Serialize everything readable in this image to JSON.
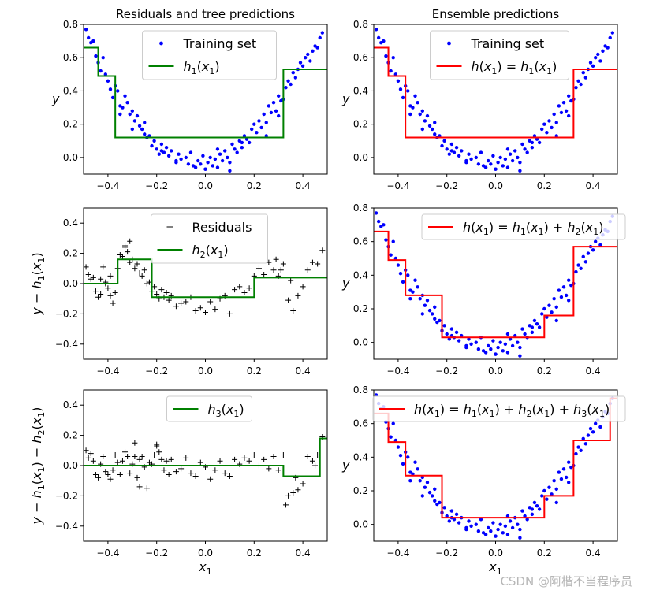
{
  "chart_data": [
    {
      "type": "scatter+step",
      "title": "Residuals and tree predictions",
      "xlabel": "",
      "ylabel": "$y$",
      "xlim": [
        -0.5,
        0.5
      ],
      "ylim": [
        -0.1,
        0.8
      ],
      "xticks": [
        -0.4,
        -0.2,
        0.0,
        0.2,
        0.4
      ],
      "xtick_labels": [
        "−0.4",
        "−0.2",
        "0.0",
        "0.2",
        "0.4"
      ],
      "yticks": [
        0.0,
        0.2,
        0.4,
        0.6,
        0.8
      ],
      "ytick_labels": [
        "0.0",
        "0.2",
        "0.4",
        "0.6",
        "0.8"
      ],
      "legend": {
        "placement": "top-center",
        "entries": [
          {
            "label": "Training set",
            "kind": "dot",
            "color": "#0000ff"
          },
          {
            "label": "h_1(x_1)",
            "kind": "line",
            "color": "#008000"
          }
        ]
      },
      "series": [
        {
          "name": "Training set",
          "kind": "scatter",
          "marker": "dot",
          "color": "#0000ff",
          "data": "quadratic_dots"
        },
        {
          "name": "h_1(x_1)",
          "kind": "step",
          "color": "#008000",
          "x": [
            -0.5,
            -0.44,
            -0.44,
            -0.37,
            -0.37,
            0.32,
            0.32,
            0.5
          ],
          "y": [
            0.66,
            0.66,
            0.49,
            0.49,
            0.12,
            0.12,
            0.53,
            0.53
          ]
        }
      ]
    },
    {
      "type": "scatter+step",
      "title": "Ensemble predictions",
      "xlabel": "",
      "ylabel": "$y$",
      "xlim": [
        -0.5,
        0.5
      ],
      "ylim": [
        -0.1,
        0.8
      ],
      "xticks": [
        -0.4,
        -0.2,
        0.0,
        0.2,
        0.4
      ],
      "xtick_labels": [
        "−0.4",
        "−0.2",
        "0.0",
        "0.2",
        "0.4"
      ],
      "yticks": [
        0.0,
        0.2,
        0.4,
        0.6,
        0.8
      ],
      "ytick_labels": [
        "0.0",
        "0.2",
        "0.4",
        "0.6",
        "0.8"
      ],
      "legend": {
        "placement": "top-center",
        "entries": [
          {
            "label": "Training set",
            "kind": "dot",
            "color": "#0000ff"
          },
          {
            "label": "h(x_1) = h_1(x_1)",
            "kind": "line",
            "color": "#ff0000"
          }
        ]
      },
      "series": [
        {
          "name": "Training set",
          "kind": "scatter",
          "marker": "dot",
          "color": "#0000ff",
          "data": "quadratic_dots"
        },
        {
          "name": "h(x_1) = h_1(x_1)",
          "kind": "step",
          "color": "#ff0000",
          "x": [
            -0.5,
            -0.44,
            -0.44,
            -0.37,
            -0.37,
            0.32,
            0.32,
            0.5
          ],
          "y": [
            0.66,
            0.66,
            0.49,
            0.49,
            0.12,
            0.12,
            0.53,
            0.53
          ]
        }
      ]
    },
    {
      "type": "scatter+step",
      "title": "",
      "xlabel": "",
      "ylabel": "$y - h_1(x_1)$",
      "xlim": [
        -0.5,
        0.5
      ],
      "ylim": [
        -0.5,
        0.5
      ],
      "xticks": [
        -0.4,
        -0.2,
        0.0,
        0.2,
        0.4
      ],
      "xtick_labels": [
        "−0.4",
        "−0.2",
        "0.0",
        "0.2",
        "0.4"
      ],
      "yticks": [
        -0.4,
        -0.2,
        0.0,
        0.2,
        0.4
      ],
      "ytick_labels": [
        "−0.4",
        "−0.2",
        "0.0",
        "0.2",
        "0.4"
      ],
      "legend": {
        "placement": "top-center",
        "entries": [
          {
            "label": "Residuals",
            "kind": "plus",
            "color": "#000000"
          },
          {
            "label": "h_2(x_1)",
            "kind": "line",
            "color": "#008000"
          }
        ]
      },
      "series": [
        {
          "name": "Residuals",
          "kind": "scatter",
          "marker": "plus",
          "color": "#000000",
          "data": "residuals_1"
        },
        {
          "name": "h_2(x_1)",
          "kind": "step",
          "color": "#008000",
          "x": [
            -0.5,
            -0.36,
            -0.36,
            -0.22,
            -0.22,
            0.2,
            0.2,
            0.5
          ],
          "y": [
            0.0,
            0.0,
            0.16,
            0.16,
            -0.09,
            -0.09,
            0.04,
            0.04
          ]
        }
      ]
    },
    {
      "type": "scatter+step",
      "title": "",
      "xlabel": "",
      "ylabel": "$y$",
      "xlim": [
        -0.5,
        0.5
      ],
      "ylim": [
        -0.1,
        0.8
      ],
      "xticks": [
        -0.4,
        -0.2,
        0.0,
        0.2,
        0.4
      ],
      "xtick_labels": [
        "−0.4",
        "−0.2",
        "0.0",
        "0.2",
        "0.4"
      ],
      "yticks": [
        0.0,
        0.2,
        0.4,
        0.6,
        0.8
      ],
      "ytick_labels": [
        "0.0",
        "0.2",
        "0.4",
        "0.6",
        "0.8"
      ],
      "legend": {
        "placement": "top-right",
        "entries": [
          {
            "label": "h(x_1) = h_1(x_1) + h_2(x_1)",
            "kind": "line",
            "color": "#ff0000"
          }
        ]
      },
      "series": [
        {
          "name": "Training set",
          "kind": "scatter",
          "marker": "dot",
          "color": "#0000ff",
          "data": "quadratic_dots"
        },
        {
          "name": "h(x_1) = h_1(x_1) + h_2(x_1)",
          "kind": "step",
          "color": "#ff0000",
          "x": [
            -0.5,
            -0.44,
            -0.44,
            -0.37,
            -0.37,
            -0.22,
            -0.22,
            0.2,
            0.2,
            0.32,
            0.32,
            0.5
          ],
          "y": [
            0.66,
            0.66,
            0.49,
            0.49,
            0.28,
            0.28,
            0.03,
            0.03,
            0.16,
            0.16,
            0.57,
            0.57
          ]
        }
      ]
    },
    {
      "type": "scatter+step",
      "title": "",
      "xlabel": "$x_1$",
      "ylabel": "$y - h_1(x_1) - h_2(x_1)$",
      "xlim": [
        -0.5,
        0.5
      ],
      "ylim": [
        -0.5,
        0.5
      ],
      "xticks": [
        -0.4,
        -0.2,
        0.0,
        0.2,
        0.4
      ],
      "xtick_labels": [
        "−0.4",
        "−0.2",
        "0.0",
        "0.2",
        "0.4"
      ],
      "yticks": [
        -0.4,
        -0.2,
        0.0,
        0.2,
        0.4
      ],
      "ytick_labels": [
        "−0.4",
        "−0.2",
        "0.0",
        "0.2",
        "0.4"
      ],
      "legend": {
        "placement": "top-center",
        "entries": [
          {
            "label": "h_3(x_1)",
            "kind": "line",
            "color": "#008000"
          }
        ]
      },
      "series": [
        {
          "name": "Residuals",
          "kind": "scatter",
          "marker": "plus",
          "color": "#000000",
          "data": "residuals_2"
        },
        {
          "name": "h_3(x_1)",
          "kind": "step",
          "color": "#008000",
          "x": [
            -0.5,
            0.32,
            0.32,
            0.47,
            0.47,
            0.5
          ],
          "y": [
            0.0,
            0.0,
            -0.07,
            -0.07,
            0.18,
            0.18
          ]
        }
      ]
    },
    {
      "type": "scatter+step",
      "title": "",
      "xlabel": "$x_1$",
      "ylabel": "$y$",
      "xlim": [
        -0.5,
        0.5
      ],
      "ylim": [
        -0.1,
        0.8
      ],
      "xticks": [
        -0.4,
        -0.2,
        0.0,
        0.2,
        0.4
      ],
      "xtick_labels": [
        "−0.4",
        "−0.2",
        "0.0",
        "0.2",
        "0.4"
      ],
      "yticks": [
        0.0,
        0.2,
        0.4,
        0.6,
        0.8
      ],
      "ytick_labels": [
        "0.0",
        "0.2",
        "0.4",
        "0.6",
        "0.8"
      ],
      "legend": {
        "placement": "top-right",
        "entries": [
          {
            "label": "h(x_1) = h_1(x_1) + h_2(x_1) + h_3(x_1)",
            "kind": "line",
            "color": "#ff0000"
          }
        ]
      },
      "series": [
        {
          "name": "Training set",
          "kind": "scatter",
          "marker": "dot",
          "color": "#0000ff",
          "data": "quadratic_dots"
        },
        {
          "name": "h(x_1) = h_1(x_1) + h_2(x_1) + h_3(x_1)",
          "kind": "step",
          "color": "#ff0000",
          "x": [
            -0.5,
            -0.44,
            -0.44,
            -0.37,
            -0.37,
            -0.22,
            -0.22,
            0.2,
            0.2,
            0.32,
            0.32,
            0.47,
            0.47,
            0.5
          ],
          "y": [
            0.66,
            0.66,
            0.49,
            0.49,
            0.29,
            0.29,
            0.04,
            0.04,
            0.17,
            0.17,
            0.5,
            0.5,
            0.75,
            0.75
          ]
        }
      ]
    }
  ],
  "scatter_data": {
    "quadratic_dots": {
      "x": [
        -0.49,
        -0.48,
        -0.47,
        -0.46,
        -0.45,
        -0.44,
        -0.43,
        -0.42,
        -0.41,
        -0.4,
        -0.39,
        -0.38,
        -0.37,
        -0.36,
        -0.35,
        -0.34,
        -0.33,
        -0.32,
        -0.31,
        -0.3,
        -0.29,
        -0.28,
        -0.27,
        -0.26,
        -0.25,
        -0.24,
        -0.23,
        -0.22,
        -0.21,
        -0.2,
        -0.19,
        -0.18,
        -0.17,
        -0.16,
        -0.15,
        -0.14,
        -0.12,
        -0.11,
        -0.1,
        -0.08,
        -0.07,
        -0.06,
        -0.05,
        -0.04,
        -0.03,
        -0.02,
        -0.01,
        0.0,
        0.01,
        0.02,
        0.03,
        0.04,
        0.05,
        0.06,
        0.07,
        0.08,
        0.09,
        0.1,
        0.11,
        0.12,
        0.13,
        0.14,
        0.15,
        0.16,
        0.17,
        0.18,
        0.19,
        0.2,
        0.21,
        0.22,
        0.23,
        0.24,
        0.25,
        0.26,
        0.27,
        0.28,
        0.29,
        0.3,
        0.31,
        0.32,
        0.33,
        0.34,
        0.35,
        0.36,
        0.37,
        0.38,
        0.39,
        0.4,
        0.41,
        0.42,
        0.43,
        0.44,
        0.45,
        0.46,
        0.47,
        0.48,
        -0.35,
        -0.3,
        -0.25,
        -0.18,
        -0.12,
        0.0,
        0.05,
        0.1,
        0.15,
        0.25,
        0.3
      ],
      "y": [
        0.77,
        0.72,
        0.69,
        0.7,
        0.61,
        0.57,
        0.52,
        0.6,
        0.5,
        0.46,
        0.41,
        0.36,
        0.43,
        0.4,
        0.31,
        0.3,
        0.37,
        0.33,
        0.26,
        0.28,
        0.22,
        0.25,
        0.19,
        0.17,
        0.21,
        0.12,
        0.13,
        0.07,
        0.1,
        0.05,
        0.02,
        0.08,
        0.03,
        0.06,
        0.01,
        0.04,
        -0.03,
        0.02,
        -0.01,
        0.0,
        -0.04,
        0.03,
        -0.05,
        -0.06,
        -0.02,
        -0.04,
        0.01,
        -0.07,
        -0.03,
        0.0,
        -0.05,
        -0.01,
        -0.06,
        0.02,
        -0.02,
        0.04,
        0.0,
        -0.03,
        0.08,
        0.05,
        0.03,
        0.1,
        0.06,
        0.13,
        0.11,
        0.09,
        0.17,
        0.2,
        0.15,
        0.22,
        0.18,
        0.26,
        0.21,
        0.31,
        0.27,
        0.33,
        0.28,
        0.37,
        0.34,
        0.35,
        0.42,
        0.46,
        0.44,
        0.51,
        0.48,
        0.53,
        0.57,
        0.55,
        0.6,
        0.62,
        0.58,
        0.64,
        0.67,
        0.66,
        0.72,
        0.75,
        0.26,
        0.17,
        0.14,
        0.04,
        -0.02,
        -0.07,
        0.05,
        -0.08,
        0.09,
        0.13,
        0.25
      ]
    },
    "residuals_1": {
      "x": [
        -0.49,
        -0.48,
        -0.47,
        -0.46,
        -0.45,
        -0.44,
        -0.43,
        -0.42,
        -0.41,
        -0.4,
        -0.39,
        -0.38,
        -0.37,
        -0.36,
        -0.35,
        -0.34,
        -0.33,
        -0.32,
        -0.31,
        -0.3,
        -0.29,
        -0.28,
        -0.27,
        -0.26,
        -0.25,
        -0.24,
        -0.23,
        -0.22,
        -0.21,
        -0.2,
        -0.19,
        -0.18,
        -0.17,
        -0.16,
        -0.15,
        -0.14,
        -0.12,
        -0.1,
        -0.08,
        -0.06,
        -0.04,
        -0.02,
        0.0,
        0.02,
        0.04,
        0.06,
        0.08,
        0.1,
        0.12,
        0.14,
        0.16,
        0.18,
        0.2,
        0.22,
        0.24,
        0.26,
        0.28,
        0.3,
        0.32,
        0.34,
        0.36,
        0.38,
        0.4,
        0.42,
        0.44,
        0.46,
        0.48,
        -0.43,
        -0.41,
        -0.39,
        -0.33,
        -0.31,
        0.29,
        0.31,
        0.35
      ],
      "y": [
        0.11,
        0.06,
        0.03,
        0.04,
        -0.05,
        -0.09,
        0.03,
        0.11,
        0.01,
        -0.03,
        -0.08,
        -0.13,
        -0.06,
        0.1,
        0.19,
        0.18,
        0.25,
        0.21,
        0.14,
        0.16,
        0.1,
        0.13,
        0.07,
        0.05,
        0.09,
        0.0,
        0.01,
        -0.05,
        -0.02,
        -0.07,
        -0.1,
        -0.04,
        -0.09,
        -0.06,
        -0.11,
        -0.08,
        -0.15,
        -0.13,
        -0.12,
        -0.09,
        -0.18,
        -0.16,
        -0.19,
        -0.12,
        -0.17,
        -0.1,
        -0.08,
        -0.2,
        -0.04,
        -0.02,
        -0.06,
        -0.03,
        0.05,
        0.1,
        0.06,
        0.14,
        0.09,
        0.05,
        0.13,
        -0.11,
        -0.18,
        -0.08,
        -0.02,
        0.09,
        0.14,
        0.13,
        0.22,
        -0.07,
        0.0,
        0.05,
        0.24,
        0.28,
        0.16,
        0.09,
        0.02
      ]
    },
    "residuals_2": {
      "x": [
        -0.49,
        -0.48,
        -0.47,
        -0.46,
        -0.45,
        -0.44,
        -0.43,
        -0.42,
        -0.41,
        -0.4,
        -0.39,
        -0.38,
        -0.37,
        -0.36,
        -0.35,
        -0.34,
        -0.33,
        -0.32,
        -0.31,
        -0.3,
        -0.29,
        -0.28,
        -0.27,
        -0.26,
        -0.25,
        -0.24,
        -0.23,
        -0.22,
        -0.21,
        -0.2,
        -0.19,
        -0.18,
        -0.17,
        -0.16,
        -0.15,
        -0.14,
        -0.12,
        -0.1,
        -0.08,
        -0.06,
        -0.04,
        -0.02,
        0.0,
        0.02,
        0.04,
        0.06,
        0.08,
        0.1,
        0.12,
        0.14,
        0.16,
        0.18,
        0.2,
        0.22,
        0.24,
        0.26,
        0.28,
        0.3,
        0.32,
        0.34,
        0.36,
        0.38,
        0.4,
        0.42,
        0.44,
        0.46,
        0.48,
        -0.29,
        -0.27,
        -0.2,
        0.33,
        0.37,
        0.45
      ],
      "y": [
        0.1,
        0.05,
        0.08,
        0.03,
        -0.06,
        -0.08,
        0.01,
        0.06,
        -0.04,
        -0.06,
        -0.09,
        -0.03,
        0.07,
        0.02,
        -0.06,
        0.03,
        0.09,
        0.06,
        -0.05,
        0.01,
        0.06,
        -0.08,
        0.04,
        0.06,
        -0.01,
        -0.15,
        0.02,
        0.01,
        0.07,
        0.13,
        0.09,
        0.04,
        -0.03,
        0.03,
        -0.06,
        0.04,
        -0.04,
        -0.02,
        0.05,
        -0.05,
        -0.07,
        0.02,
        -0.01,
        -0.09,
        -0.03,
        0.03,
        -0.05,
        -0.07,
        0.04,
        0.01,
        0.05,
        0.03,
        0.07,
        0.0,
        0.04,
        -0.02,
        0.06,
        -0.03,
        0.07,
        -0.2,
        -0.18,
        -0.16,
        -0.12,
        0.06,
        0.03,
        0.07,
        0.19,
        0.15,
        -0.14,
        0.14,
        -0.26,
        -0.08,
        0.0
      ]
    }
  },
  "watermark": "CSDN @阿楷不当程序员"
}
